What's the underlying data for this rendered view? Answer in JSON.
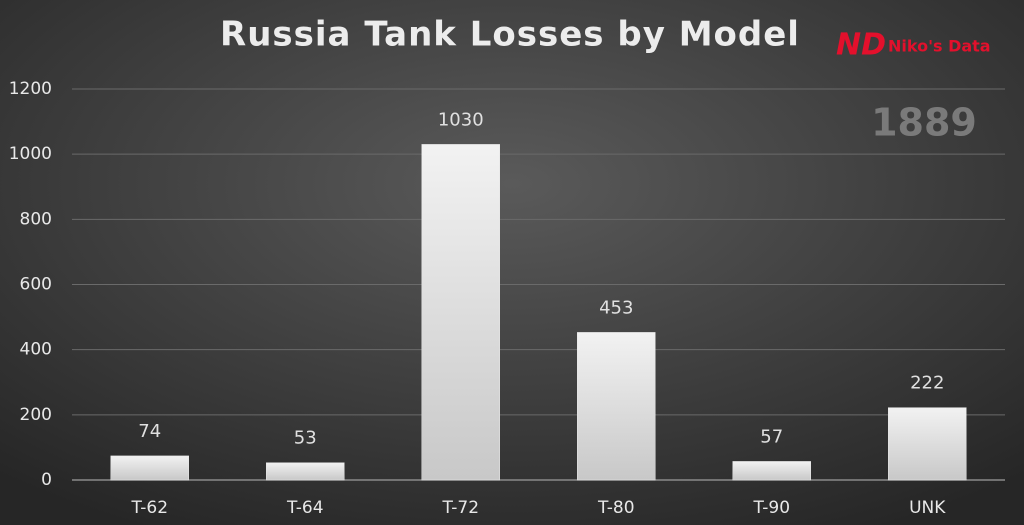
{
  "chart_data": {
    "type": "bar",
    "title": "Russia Tank Losses by Model",
    "logo": {
      "mark": "ND",
      "text": "Niko's Data"
    },
    "annotation": "1889",
    "categories": [
      "T-62",
      "T-64",
      "T-72",
      "T-80",
      "T-90",
      "UNK"
    ],
    "values": [
      74,
      53,
      1030,
      453,
      57,
      222
    ],
    "color": "#e6e6e6",
    "ylim": [
      0,
      1200
    ],
    "yticks": [
      0,
      200,
      400,
      600,
      800,
      1000,
      1200
    ],
    "grid": true
  }
}
